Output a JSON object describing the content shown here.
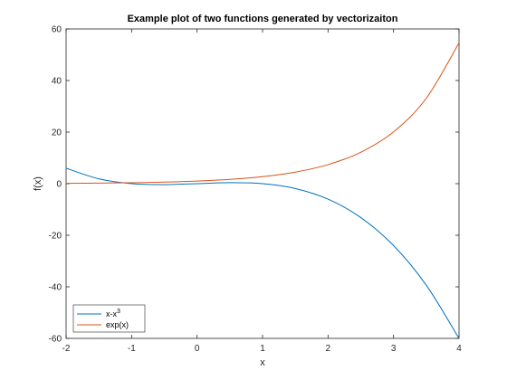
{
  "chart_data": {
    "type": "line",
    "title": "Example plot of two functions generated by vectorizaiton",
    "xlabel": "x",
    "ylabel": "f(x)",
    "xlim": [
      -2,
      4
    ],
    "ylim": [
      -60,
      60
    ],
    "x_ticks": [
      -2,
      -1,
      0,
      1,
      2,
      3,
      4
    ],
    "y_ticks": [
      -60,
      -40,
      -20,
      0,
      20,
      40,
      60
    ],
    "x_tick_labels": [
      "-2",
      "-1",
      "0",
      "1",
      "2",
      "3",
      "4"
    ],
    "y_tick_labels": [
      "-60",
      "-40",
      "-20",
      "0",
      "20",
      "40",
      "60"
    ],
    "grid": false,
    "legend_position": "bottom-left",
    "x": [
      -2,
      -1.5,
      -1,
      -0.5,
      0,
      0.5,
      1,
      1.5,
      2,
      2.5,
      3,
      3.5,
      4
    ],
    "series": [
      {
        "name": "x-x",
        "name_superscript": "3",
        "color": "#0072BD",
        "values": [
          6,
          1.875,
          0,
          -0.375,
          0,
          0.375,
          0,
          -1.875,
          -6,
          -13.125,
          -24,
          -39.375,
          -60
        ]
      },
      {
        "name": "exp(x)",
        "color": "#D95319",
        "values": [
          0.1353,
          0.2231,
          0.3679,
          0.6065,
          1,
          1.6487,
          2.7183,
          4.4817,
          7.3891,
          12.1825,
          20.0855,
          33.1155,
          54.5982
        ]
      }
    ]
  }
}
